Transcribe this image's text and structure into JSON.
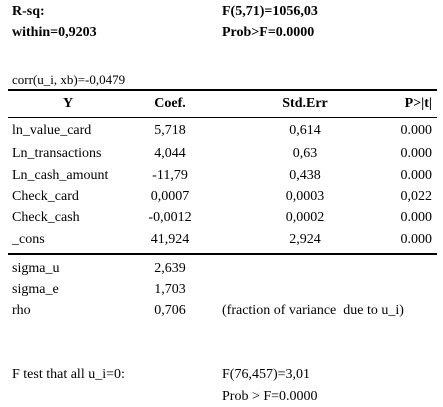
{
  "header": {
    "r_sq": "R-sq:",
    "within": "within=0,9203",
    "f_stat": "F(5,71)=1056,03",
    "prob": "Prob>F=0.0000",
    "corr": "corr(u_i, xb)=-0,0479"
  },
  "table": {
    "columns": [
      "Y",
      "Coef.",
      "Std.Err",
      "P>|t|"
    ],
    "rows": [
      [
        "ln_value_card",
        "5,718",
        "0,614",
        "0.000"
      ],
      [
        "Ln_transactions",
        "4,044",
        "0,63",
        "0.000"
      ],
      [
        "Ln_cash_amount",
        "-11,79",
        "0,438",
        "0.000"
      ],
      [
        "Check_card",
        "0,0007",
        "0,0003",
        "0,022"
      ],
      [
        "Check_cash",
        "-0,0012",
        "0,0002",
        "0.000"
      ],
      [
        "_cons",
        "41,924",
        "2,924",
        "0.000"
      ]
    ],
    "extra_rows": [
      [
        "sigma_u",
        "2,639"
      ],
      [
        "sigma_e",
        "1,703"
      ],
      [
        "rho",
        "0,706",
        "(fraction of variance  due to u_i)"
      ]
    ]
  },
  "footer": {
    "label": "F test that all u_i=0:",
    "f_stat": "F(76,457)=3,01",
    "prob": "Prob > F=0.0000"
  }
}
